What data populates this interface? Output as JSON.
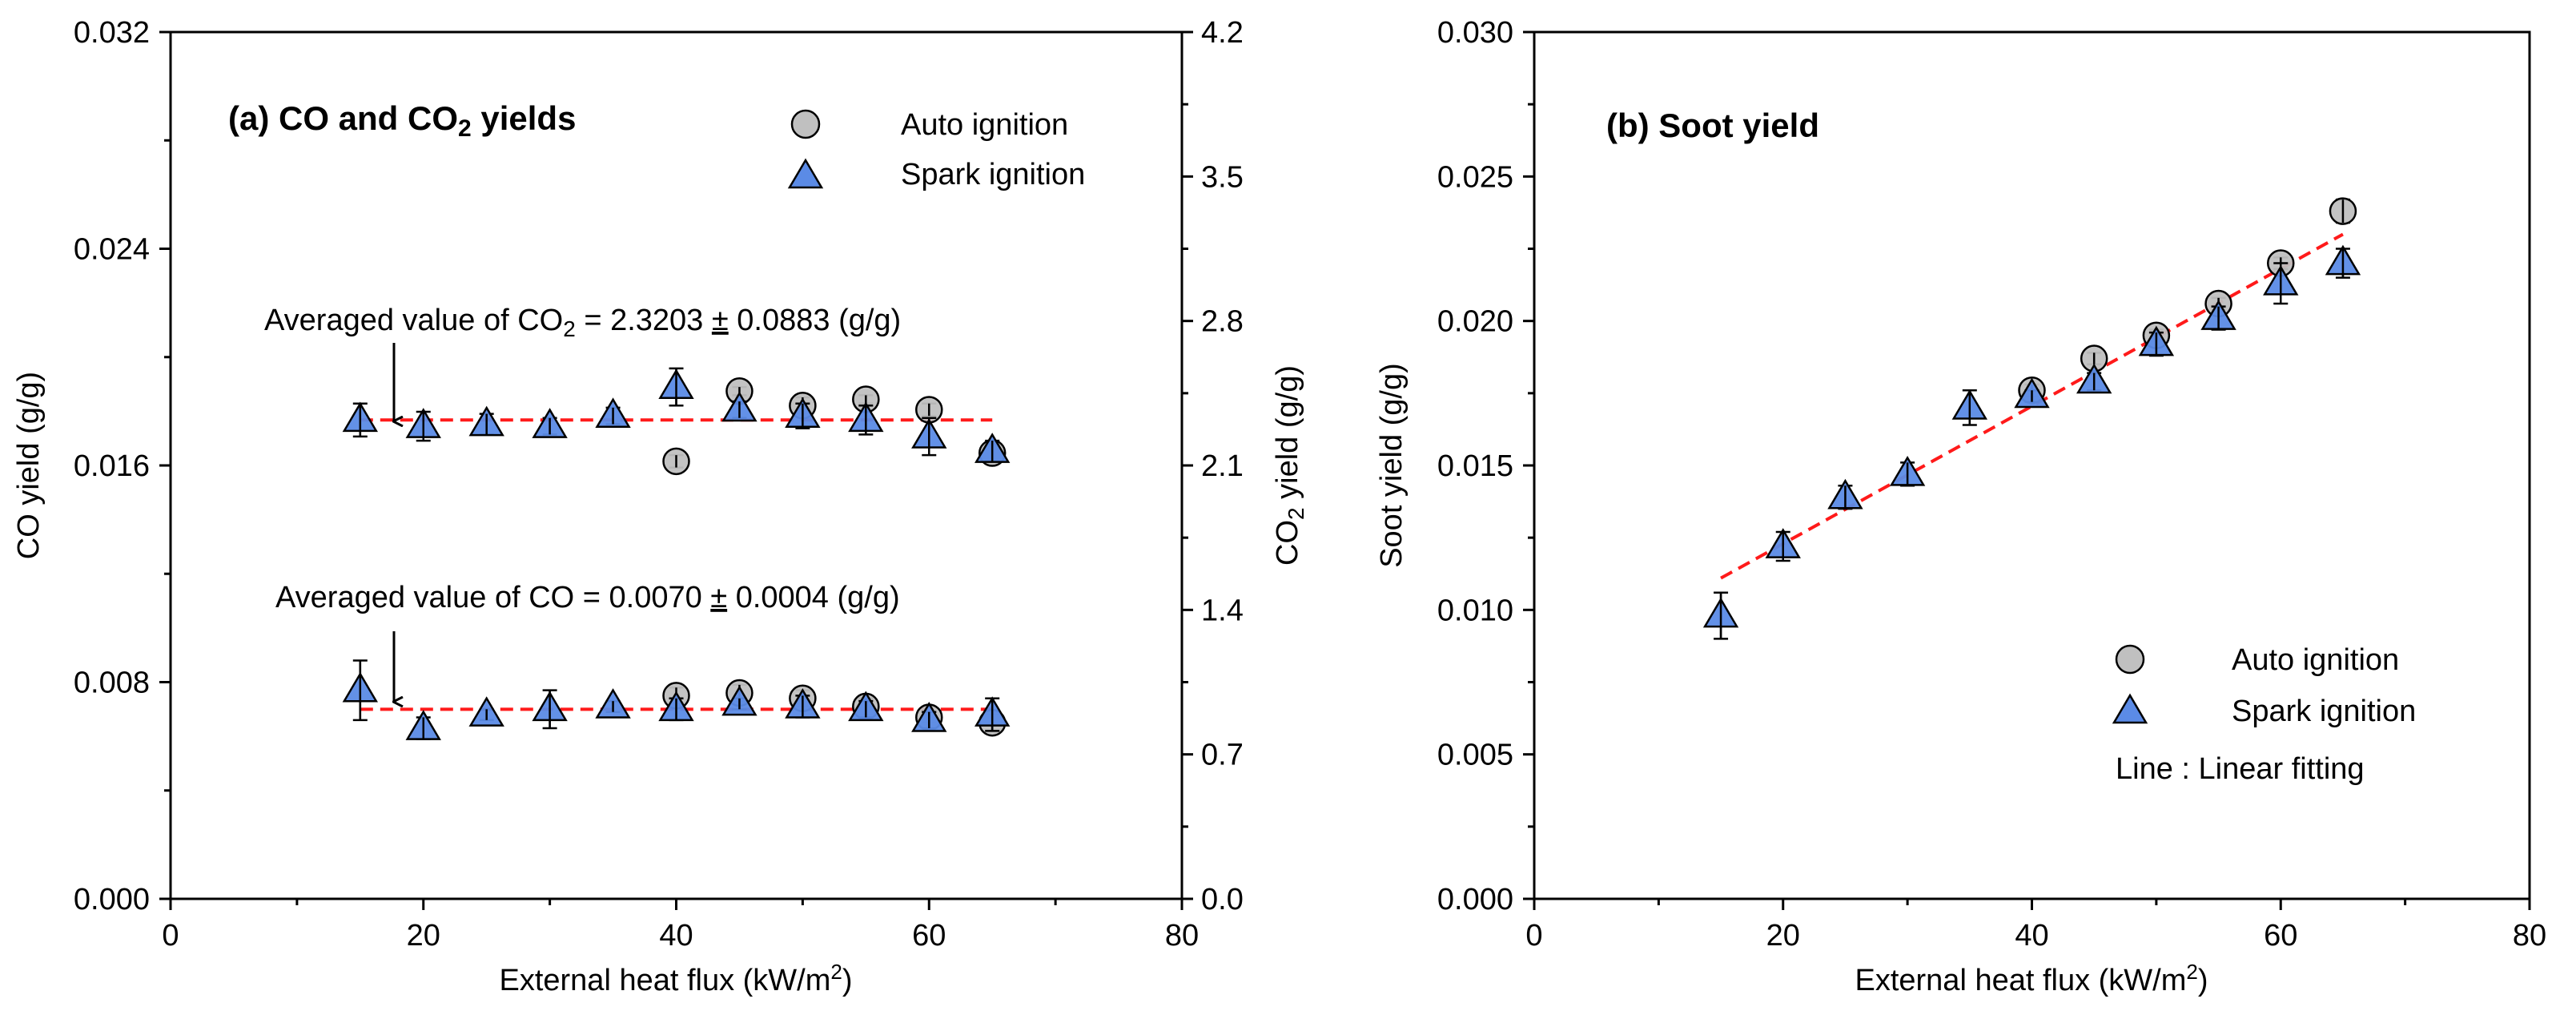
{
  "colors": {
    "auto_marker": "#c0c0c0",
    "spark_marker": "#5b8be6",
    "fit_line": "#ff1a1a",
    "axis": "#000000"
  },
  "chart_data": [
    {
      "type": "scatter",
      "id": "a",
      "title_prefix": "(a) CO and CO",
      "title_sub": "2",
      "title_suffix": " yields",
      "xlabel": "External heat flux (kW/m",
      "xlabel_sup": "2",
      "xlabel_suffix": ")",
      "ylabel": "CO yield (g/g)",
      "y2label_prefix": "CO",
      "y2label_sub": "2",
      "y2label_suffix": " yield (g/g)",
      "xlim": [
        0,
        80
      ],
      "ylim": [
        0,
        0.032
      ],
      "y2lim": [
        0,
        4.2
      ],
      "xticks": [
        0,
        20,
        40,
        60,
        80
      ],
      "yticks": [
        0.0,
        0.008,
        0.016,
        0.024,
        0.032
      ],
      "yticks_labels": [
        "0.000",
        "0.008",
        "0.016",
        "0.024",
        "0.032"
      ],
      "y2ticks": [
        0.0,
        0.7,
        1.4,
        2.1,
        2.8,
        3.5,
        4.2
      ],
      "y2ticks_labels": [
        "0.0",
        "0.7",
        "1.4",
        "2.1",
        "2.8",
        "3.5",
        "4.2"
      ],
      "grid": false,
      "legend": [
        {
          "label": "Auto ignition",
          "marker": "circle"
        },
        {
          "label": "Spark ignition",
          "marker": "triangle"
        }
      ],
      "legend_position": "top-right",
      "annotations": [
        {
          "text_prefix": "Averaged value of CO",
          "text_sub": "2",
          "text_value": " = 2.3203 ",
          "text_pm": "±",
          "text_suffix": " 0.0883 (g/g)",
          "arrow_to": {
            "x": 18,
            "y2": 2.28
          }
        },
        {
          "text_prefix": "Averaged value of CO = 0.0070 ",
          "text_pm": "±",
          "text_suffix": " 0.0004 (g/g)",
          "arrow_to": {
            "x": 18,
            "y": 0.0071
          }
        }
      ],
      "fit_lines": [
        {
          "axis": "y2",
          "name": "CO2 average",
          "x": [
            15,
            65
          ],
          "y": [
            2.3203,
            2.3203
          ]
        },
        {
          "axis": "y",
          "name": "CO average",
          "x": [
            15,
            65
          ],
          "y": [
            0.007,
            0.007
          ]
        }
      ],
      "series": [
        {
          "name": "Auto ignition CO2",
          "marker": "circle",
          "axis": "y2",
          "x": [
            40,
            45,
            50,
            55,
            60,
            65
          ],
          "y": [
            2.12,
            2.46,
            2.39,
            2.42,
            2.37,
            2.16
          ],
          "err": [
            0.03,
            0.02,
            0.04,
            0.02,
            0.03,
            0.04
          ]
        },
        {
          "name": "Spark ignition CO2",
          "marker": "triangle",
          "axis": "y2",
          "x": [
            15,
            20,
            25,
            30,
            35,
            40,
            45,
            50,
            55,
            60,
            65
          ],
          "y": [
            2.32,
            2.29,
            2.3,
            2.29,
            2.34,
            2.48,
            2.37,
            2.34,
            2.32,
            2.24,
            2.17
          ],
          "err": [
            0.08,
            0.07,
            0.05,
            0.04,
            0.04,
            0.09,
            0.04,
            0.06,
            0.07,
            0.09,
            0.05
          ]
        },
        {
          "name": "Auto ignition CO",
          "marker": "circle",
          "axis": "y",
          "x": [
            40,
            45,
            50,
            55,
            60,
            65
          ],
          "y": [
            0.0075,
            0.0076,
            0.0074,
            0.0071,
            0.0067,
            0.0065
          ],
          "err": [
            0.0003,
            0.0003,
            0.0003,
            0.0003,
            0.0002,
            0.0003
          ]
        },
        {
          "name": "Spark ignition CO",
          "marker": "triangle",
          "axis": "y",
          "x": [
            15,
            20,
            25,
            30,
            35,
            40,
            45,
            50,
            55,
            60,
            65
          ],
          "y": [
            0.0077,
            0.0063,
            0.0068,
            0.007,
            0.0071,
            0.007,
            0.0072,
            0.0071,
            0.007,
            0.0066,
            0.0068
          ],
          "err": [
            0.0011,
            0.0004,
            0.0002,
            0.0007,
            0.0002,
            0.0004,
            0.0002,
            0.0004,
            0.0003,
            0.0003,
            0.0006
          ]
        }
      ]
    },
    {
      "type": "scatter",
      "id": "b",
      "title": "(b) Soot yield",
      "xlabel": "External heat flux (kW/m",
      "xlabel_sup": "2",
      "xlabel_suffix": ")",
      "ylabel": "Soot yield (g/g)",
      "xlim": [
        0,
        80
      ],
      "ylim": [
        0,
        0.03
      ],
      "xticks": [
        0,
        20,
        40,
        60,
        80
      ],
      "yticks": [
        0.0,
        0.005,
        0.01,
        0.015,
        0.02,
        0.025,
        0.03
      ],
      "yticks_labels": [
        "0.000",
        "0.005",
        "0.010",
        "0.015",
        "0.020",
        "0.025",
        "0.030"
      ],
      "grid": false,
      "legend": [
        {
          "label": "Auto ignition",
          "marker": "circle"
        },
        {
          "label": "Spark ignition",
          "marker": "triangle"
        }
      ],
      "legend_position": "bottom-right",
      "legend_note": "Line : Linear fitting",
      "fit_lines": [
        {
          "axis": "y",
          "name": "Linear fitting",
          "x": [
            15,
            65
          ],
          "y": [
            0.0111,
            0.023
          ]
        }
      ],
      "series": [
        {
          "name": "Auto ignition",
          "marker": "circle",
          "axis": "y",
          "x": [
            40,
            45,
            50,
            55,
            60,
            65
          ],
          "y": [
            0.0176,
            0.0187,
            0.0195,
            0.0206,
            0.022,
            0.0238
          ],
          "err": [
            0.0002,
            0.0002,
            0.0002,
            0.0002,
            0.0002,
            0.0004
          ]
        },
        {
          "name": "Spark ignition",
          "marker": "triangle",
          "axis": "y",
          "x": [
            15,
            20,
            25,
            30,
            35,
            40,
            45,
            50,
            55,
            60,
            65
          ],
          "y": [
            0.0098,
            0.0122,
            0.0139,
            0.0147,
            0.017,
            0.0174,
            0.0179,
            0.0192,
            0.0201,
            0.0213,
            0.022
          ],
          "err": [
            0.0008,
            0.0005,
            0.0004,
            0.0004,
            0.0006,
            0.0002,
            0.0003,
            0.0004,
            0.0004,
            0.0007,
            0.0005
          ]
        }
      ]
    }
  ]
}
